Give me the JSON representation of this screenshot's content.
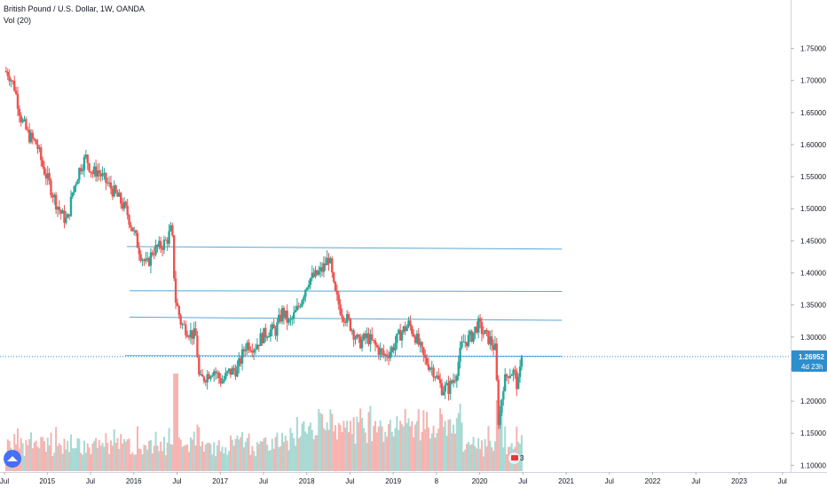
{
  "legend": {
    "symbol": "British Pound / U.S. Dollar, 1W, OANDA",
    "volume_label": "Vol (20)"
  },
  "price_axis": {
    "ticks": [
      "1.75000",
      "1.70000",
      "1.65000",
      "1.60000",
      "1.55000",
      "1.50000",
      "1.45000",
      "1.40000",
      "1.35000",
      "1.30000",
      "1.25000",
      "1.20000",
      "1.15000",
      "1.10000"
    ],
    "current_price": "1.26952",
    "countdown": "4d 23h"
  },
  "event_marker": {
    "count": "3"
  },
  "colors": {
    "up": "#26a69a",
    "down": "#ef5350",
    "up_volume": "#a8d9d3",
    "down_volume": "#f6b3b1",
    "level_line": "#5aa8d6",
    "price_label_bg": "#2d8ecf",
    "axis_text": "#131722"
  },
  "chart_data": {
    "type": "candlestick",
    "title": "British Pound / U.S. Dollar, 1W, OANDA",
    "ylim": [
      1.095,
      1.795
    ],
    "x_axis_labels": [
      "Jul",
      "2015",
      "Jul",
      "2016",
      "Jul",
      "2017",
      "Jul",
      "2018",
      "Jul",
      "2019",
      "8",
      "2020",
      "Jul",
      "2021",
      "Jul",
      "2022",
      "Jul",
      "2023",
      "Jul"
    ],
    "price_path": [
      [
        2014.5,
        1.715
      ],
      [
        2014.55,
        1.712
      ],
      [
        2014.62,
        1.69
      ],
      [
        2014.7,
        1.64
      ],
      [
        2014.78,
        1.615
      ],
      [
        2014.88,
        1.6
      ],
      [
        2014.95,
        1.565
      ],
      [
        2015.02,
        1.54
      ],
      [
        2015.1,
        1.51
      ],
      [
        2015.17,
        1.49
      ],
      [
        2015.23,
        1.48
      ],
      [
        2015.3,
        1.53
      ],
      [
        2015.38,
        1.565
      ],
      [
        2015.45,
        1.58
      ],
      [
        2015.52,
        1.555
      ],
      [
        2015.58,
        1.56
      ],
      [
        2015.66,
        1.545
      ],
      [
        2015.75,
        1.53
      ],
      [
        2015.83,
        1.515
      ],
      [
        2015.92,
        1.495
      ],
      [
        2016.02,
        1.455
      ],
      [
        2016.08,
        1.43
      ],
      [
        2016.15,
        1.41
      ],
      [
        2016.22,
        1.435
      ],
      [
        2016.3,
        1.44
      ],
      [
        2016.38,
        1.45
      ],
      [
        2016.44,
        1.47
      ],
      [
        2016.48,
        1.36
      ],
      [
        2016.55,
        1.32
      ],
      [
        2016.63,
        1.31
      ],
      [
        2016.72,
        1.3
      ],
      [
        2016.76,
        1.23
      ],
      [
        2016.84,
        1.24
      ],
      [
        2016.92,
        1.25
      ],
      [
        2017.02,
        1.23
      ],
      [
        2017.1,
        1.245
      ],
      [
        2017.2,
        1.25
      ],
      [
        2017.3,
        1.29
      ],
      [
        2017.4,
        1.285
      ],
      [
        2017.48,
        1.3
      ],
      [
        2017.56,
        1.31
      ],
      [
        2017.64,
        1.31
      ],
      [
        2017.72,
        1.34
      ],
      [
        2017.8,
        1.32
      ],
      [
        2017.9,
        1.345
      ],
      [
        2018.02,
        1.39
      ],
      [
        2018.1,
        1.395
      ],
      [
        2018.18,
        1.405
      ],
      [
        2018.26,
        1.425
      ],
      [
        2018.32,
        1.37
      ],
      [
        2018.4,
        1.34
      ],
      [
        2018.5,
        1.32
      ],
      [
        2018.6,
        1.29
      ],
      [
        2018.7,
        1.3
      ],
      [
        2018.8,
        1.285
      ],
      [
        2018.9,
        1.27
      ],
      [
        2018.98,
        1.28
      ],
      [
        2019.08,
        1.305
      ],
      [
        2019.18,
        1.32
      ],
      [
        2019.26,
        1.3
      ],
      [
        2019.36,
        1.265
      ],
      [
        2019.46,
        1.25
      ],
      [
        2019.56,
        1.22
      ],
      [
        2019.64,
        1.22
      ],
      [
        2019.72,
        1.24
      ],
      [
        2019.8,
        1.29
      ],
      [
        2019.9,
        1.3
      ],
      [
        2019.98,
        1.32
      ],
      [
        2020.05,
        1.305
      ],
      [
        2020.12,
        1.295
      ],
      [
        2020.18,
        1.28
      ],
      [
        2020.22,
        1.16
      ],
      [
        2020.27,
        1.225
      ],
      [
        2020.33,
        1.245
      ],
      [
        2020.4,
        1.245
      ],
      [
        2020.44,
        1.22
      ],
      [
        2020.49,
        1.269
      ]
    ],
    "horizontal_levels": [
      {
        "from": 2015.92,
        "to": 2020.95,
        "start_price": 1.441,
        "end_price": 1.437
      },
      {
        "from": 2015.95,
        "to": 2020.95,
        "start_price": 1.372,
        "end_price": 1.371
      },
      {
        "from": 2015.95,
        "to": 2020.95,
        "start_price": 1.331,
        "end_price": 1.326
      },
      {
        "from": 2015.9,
        "to": 2020.95,
        "start_price": 1.271,
        "end_price": 1.27
      }
    ],
    "last_price": 1.26952
  }
}
